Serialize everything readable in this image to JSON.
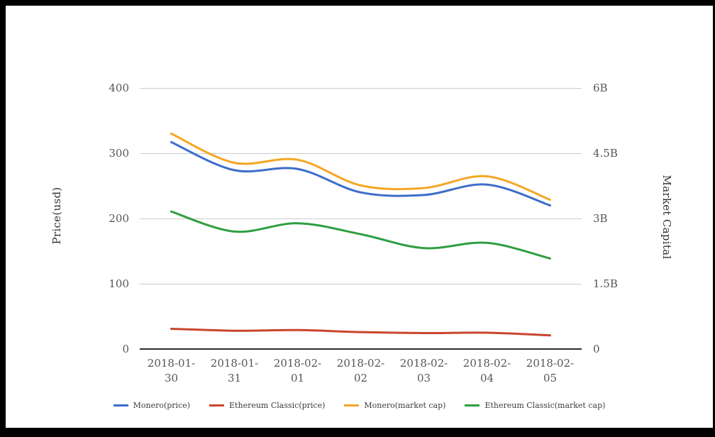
{
  "chart_data": {
    "type": "line",
    "curve": "smooth",
    "x": [
      "2018-01-30",
      "2018-01-31",
      "2018-02-01",
      "2018-02-02",
      "2018-02-03",
      "2018-02-04",
      "2018-02-05"
    ],
    "series": [
      {
        "name": "Monero(price)",
        "axis": "left",
        "color": "#3d6dc9",
        "values": [
          317,
          274,
          276,
          240,
          236,
          252,
          220
        ]
      },
      {
        "name": "Ethereum Classic(price)",
        "axis": "left",
        "color": "#c9462c",
        "values": [
          31,
          28,
          29,
          26,
          24.5,
          25,
          21
        ]
      },
      {
        "name": "Monero(market cap)",
        "axis": "right",
        "color": "#f5a623",
        "values": [
          4.95,
          4.28,
          4.35,
          3.76,
          3.7,
          3.97,
          3.43
        ]
      },
      {
        "name": "Ethereum Classic(market cap)",
        "axis": "right",
        "color": "#2f9e41",
        "values": [
          3.16,
          2.7,
          2.89,
          2.64,
          2.32,
          2.44,
          2.08
        ]
      }
    ],
    "left_axis": {
      "title": "Price(usd)",
      "ticks": [
        "0",
        "100",
        "200",
        "300",
        "400"
      ],
      "range": [
        0,
        400
      ]
    },
    "right_axis": {
      "title": "Market Capital",
      "ticks": [
        "0",
        "1.5B",
        "3B",
        "4.5B",
        "6B"
      ],
      "range": [
        0,
        6
      ]
    },
    "grid": true,
    "legend_position": "bottom",
    "colors": {
      "gridline": "#cccccc",
      "axis_line": "#2b2b2b",
      "tick_text": "#565656",
      "background": "#ffffff",
      "frame": "#000000"
    }
  }
}
